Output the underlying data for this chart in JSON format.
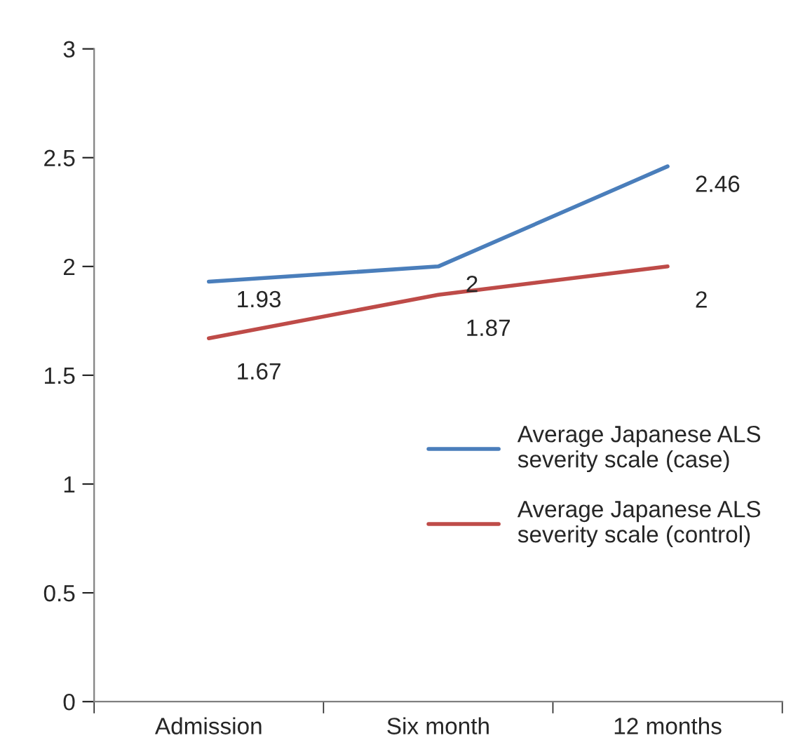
{
  "chart_data": {
    "type": "line",
    "categories": [
      "Admission",
      "Six month",
      "12 months"
    ],
    "series": [
      {
        "name": "Average Japanese ALS severity scale (case)",
        "color": "#4a7ebb",
        "values": [
          1.93,
          2,
          2.46
        ]
      },
      {
        "name": "Average Japanese ALS severity scale (control)",
        "color": "#be4b48",
        "values": [
          1.67,
          1.87,
          2
        ]
      }
    ],
    "ylim": [
      0,
      3
    ],
    "yticks": [
      0,
      0.5,
      1,
      1.5,
      2,
      2.5,
      3
    ],
    "data_labels": true,
    "legend": "center right",
    "grid": false,
    "marker": "none",
    "line_style": "solid"
  }
}
